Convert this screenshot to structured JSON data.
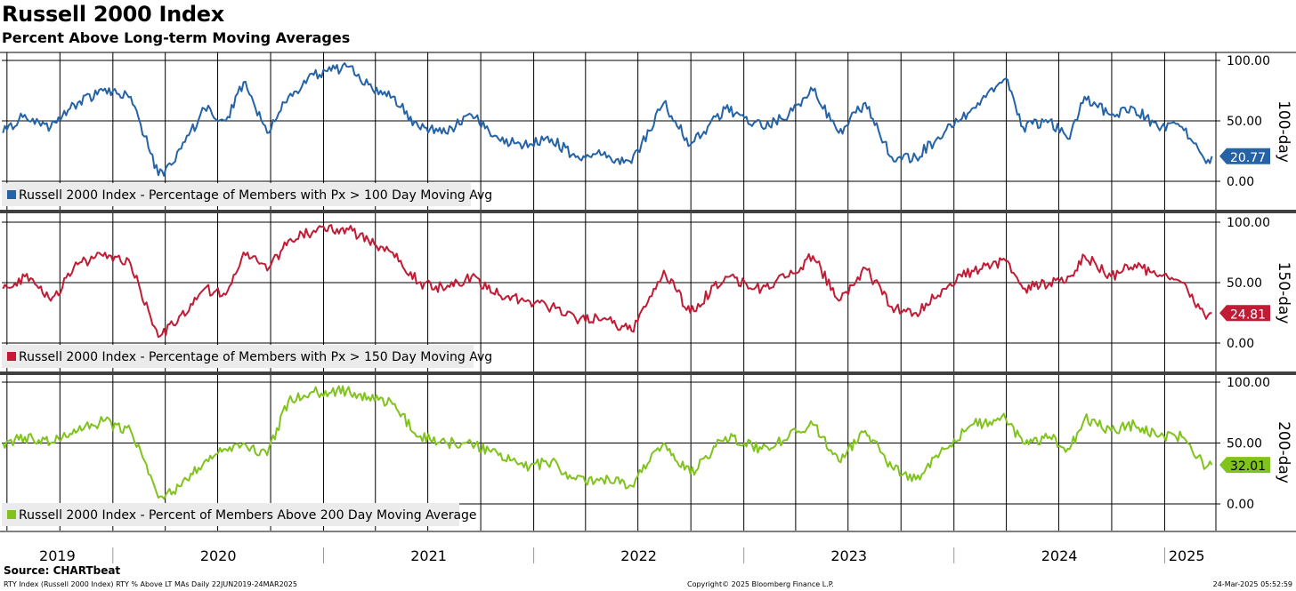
{
  "title": "Russell 2000 Index",
  "subtitle": "Percent Above Long-term Moving Averages",
  "source": "Source: CHARTbeat",
  "footer": {
    "left": "RTY Index (Russell 2000 Index) RTY % Above LT MAs  Daily 22JUN2019-24MAR2025",
    "center": "Copyright© 2025 Bloomberg Finance L.P.",
    "right": "24-Mar-2025 05:52:59"
  },
  "chart_data": [
    {
      "type": "line",
      "panel_label": "100-day",
      "legend": "Russell 2000 Index - Percentage of Members with Px > 100 Day Moving Avg",
      "color": "#2563a6",
      "last_value": "20.77",
      "ylim": [
        0,
        100
      ],
      "yticks": [
        "0.00",
        "50.00",
        "100.00"
      ],
      "x": [
        "2019-06-24",
        "2019-08-01",
        "2019-09-15",
        "2019-11-01",
        "2019-12-15",
        "2020-02-01",
        "2020-03-20",
        "2020-04-15",
        "2020-06-08",
        "2020-07-15",
        "2020-08-15",
        "2020-09-25",
        "2020-11-01",
        "2020-12-15",
        "2021-02-10",
        "2021-03-20",
        "2021-05-01",
        "2021-06-15",
        "2021-08-01",
        "2021-09-15",
        "2021-11-01",
        "2021-12-15",
        "2022-02-01",
        "2022-03-15",
        "2022-05-01",
        "2022-06-20",
        "2022-08-15",
        "2022-09-30",
        "2022-11-30",
        "2023-02-01",
        "2023-03-20",
        "2023-05-01",
        "2023-06-15",
        "2023-07-31",
        "2023-09-15",
        "2023-10-27",
        "2023-12-15",
        "2024-02-01",
        "2024-03-31",
        "2024-04-30",
        "2024-06-15",
        "2024-07-20",
        "2024-08-15",
        "2024-09-30",
        "2024-11-10",
        "2024-12-20",
        "2025-01-31",
        "2025-03-14",
        "2025-03-24"
      ],
      "values": [
        40,
        55,
        45,
        65,
        75,
        70,
        5,
        15,
        60,
        50,
        82,
        40,
        70,
        88,
        95,
        80,
        70,
        45,
        40,
        55,
        35,
        30,
        35,
        20,
        22,
        15,
        65,
        30,
        60,
        45,
        55,
        75,
        40,
        65,
        20,
        20,
        40,
        60,
        85,
        45,
        50,
        35,
        70,
        55,
        60,
        45,
        45,
        15,
        20.77
      ]
    },
    {
      "type": "line",
      "panel_label": "150-day",
      "legend": "Russell 2000 Index - Percentage of Members with Px > 150 Day Moving Avg",
      "color": "#c01c35",
      "last_value": "24.81",
      "ylim": [
        0,
        100
      ],
      "yticks": [
        "0.00",
        "50.00",
        "100.00"
      ],
      "x": [
        "2019-06-24",
        "2019-08-01",
        "2019-09-15",
        "2019-11-01",
        "2019-12-15",
        "2020-02-01",
        "2020-03-20",
        "2020-04-15",
        "2020-06-08",
        "2020-07-15",
        "2020-08-15",
        "2020-09-25",
        "2020-11-01",
        "2020-12-15",
        "2021-02-10",
        "2021-03-20",
        "2021-05-01",
        "2021-06-15",
        "2021-08-01",
        "2021-09-15",
        "2021-11-01",
        "2021-12-15",
        "2022-02-01",
        "2022-03-15",
        "2022-05-01",
        "2022-06-20",
        "2022-08-15",
        "2022-09-30",
        "2022-11-30",
        "2023-02-01",
        "2023-03-20",
        "2023-05-01",
        "2023-06-15",
        "2023-07-31",
        "2023-09-15",
        "2023-10-27",
        "2023-12-15",
        "2024-02-01",
        "2024-03-31",
        "2024-04-30",
        "2024-06-15",
        "2024-07-20",
        "2024-08-15",
        "2024-09-30",
        "2024-11-10",
        "2024-12-20",
        "2025-01-31",
        "2025-03-14",
        "2025-03-24"
      ],
      "values": [
        45,
        55,
        35,
        65,
        72,
        65,
        5,
        15,
        45,
        40,
        75,
        60,
        85,
        93,
        95,
        85,
        75,
        50,
        45,
        55,
        40,
        35,
        30,
        20,
        20,
        10,
        60,
        25,
        55,
        45,
        55,
        72,
        35,
        62,
        30,
        25,
        45,
        60,
        68,
        45,
        50,
        55,
        72,
        55,
        65,
        55,
        50,
        20,
        24.81
      ]
    },
    {
      "type": "line",
      "panel_label": "200-day",
      "legend": "Russell 2000 Index - Percent of Members Above 200 Day Moving Average",
      "color": "#80c31c",
      "last_value": "32.01",
      "ylim": [
        0,
        100
      ],
      "yticks": [
        "0.00",
        "50.00",
        "100.00"
      ],
      "x": [
        "2019-06-24",
        "2019-08-01",
        "2019-09-15",
        "2019-11-01",
        "2019-12-15",
        "2020-02-01",
        "2020-03-20",
        "2020-04-15",
        "2020-06-08",
        "2020-07-15",
        "2020-08-15",
        "2020-09-25",
        "2020-11-01",
        "2020-12-15",
        "2021-02-10",
        "2021-03-20",
        "2021-05-01",
        "2021-06-15",
        "2021-08-01",
        "2021-09-15",
        "2021-11-01",
        "2021-12-15",
        "2022-02-01",
        "2022-03-15",
        "2022-05-01",
        "2022-06-20",
        "2022-08-15",
        "2022-09-30",
        "2022-11-30",
        "2023-02-01",
        "2023-03-20",
        "2023-05-01",
        "2023-06-15",
        "2023-07-31",
        "2023-09-15",
        "2023-10-27",
        "2023-12-15",
        "2024-02-01",
        "2024-03-31",
        "2024-04-30",
        "2024-06-15",
        "2024-07-20",
        "2024-08-15",
        "2024-09-30",
        "2024-11-10",
        "2024-12-20",
        "2025-01-31",
        "2025-03-14",
        "2025-03-24"
      ],
      "values": [
        50,
        55,
        50,
        60,
        68,
        60,
        5,
        10,
        35,
        45,
        50,
        40,
        85,
        92,
        93,
        88,
        82,
        55,
        50,
        50,
        40,
        30,
        35,
        20,
        20,
        15,
        50,
        25,
        55,
        45,
        55,
        65,
        35,
        60,
        30,
        20,
        45,
        65,
        70,
        50,
        55,
        45,
        70,
        60,
        65,
        55,
        55,
        30,
        32.01
      ]
    }
  ],
  "x_axis": {
    "labels": [
      "2019",
      "2020",
      "2021",
      "2022",
      "2023",
      "2024",
      "2025"
    ]
  }
}
